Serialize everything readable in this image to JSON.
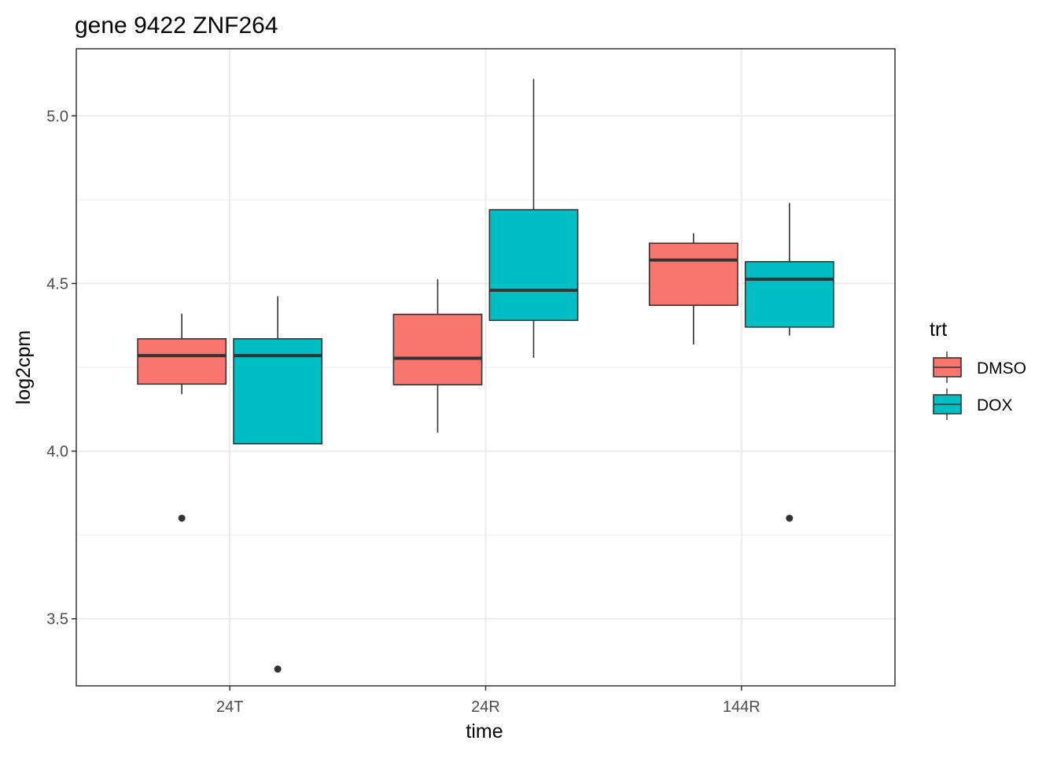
{
  "chart_data": {
    "type": "boxplot",
    "title": "gene 9422 ZNF264",
    "xlabel": "time",
    "ylabel": "log2cpm",
    "categories": [
      "24T",
      "24R",
      "144R"
    ],
    "y_ticks": [
      "3.5",
      "4.0",
      "4.5",
      "5.0"
    ],
    "y_tick_values": [
      3.5,
      4.0,
      4.5,
      5.0
    ],
    "ylim": [
      3.3,
      5.2
    ],
    "grid": true,
    "legend": {
      "title": "trt",
      "position": "right",
      "entries": [
        {
          "label": "DMSO",
          "color": "#F8766D"
        },
        {
          "label": "DOX",
          "color": "#00BFC4"
        }
      ]
    },
    "series": [
      {
        "name": "DMSO",
        "color": "#F8766D",
        "boxes": [
          {
            "category": "24T",
            "whisker_low": 4.17,
            "q1": 4.2,
            "median": 4.285,
            "q3": 4.335,
            "whisker_high": 4.41,
            "outliers": [
              3.8
            ]
          },
          {
            "category": "24R",
            "whisker_low": 4.055,
            "q1": 4.198,
            "median": 4.277,
            "q3": 4.408,
            "whisker_high": 4.513,
            "outliers": []
          },
          {
            "category": "144R",
            "whisker_low": 4.318,
            "q1": 4.435,
            "median": 4.57,
            "q3": 4.62,
            "whisker_high": 4.65,
            "outliers": []
          }
        ]
      },
      {
        "name": "DOX",
        "color": "#00BFC4",
        "boxes": [
          {
            "category": "24T",
            "whisker_low": 4.022,
            "q1": 4.022,
            "median": 4.285,
            "q3": 4.335,
            "whisker_high": 4.462,
            "outliers": [
              3.35
            ]
          },
          {
            "category": "24R",
            "whisker_low": 4.278,
            "q1": 4.39,
            "median": 4.48,
            "q3": 4.72,
            "whisker_high": 5.11,
            "outliers": []
          },
          {
            "category": "144R",
            "whisker_low": 4.345,
            "q1": 4.37,
            "median": 4.513,
            "q3": 4.565,
            "whisker_high": 4.74,
            "outliers": [
              3.8
            ]
          }
        ]
      }
    ]
  }
}
